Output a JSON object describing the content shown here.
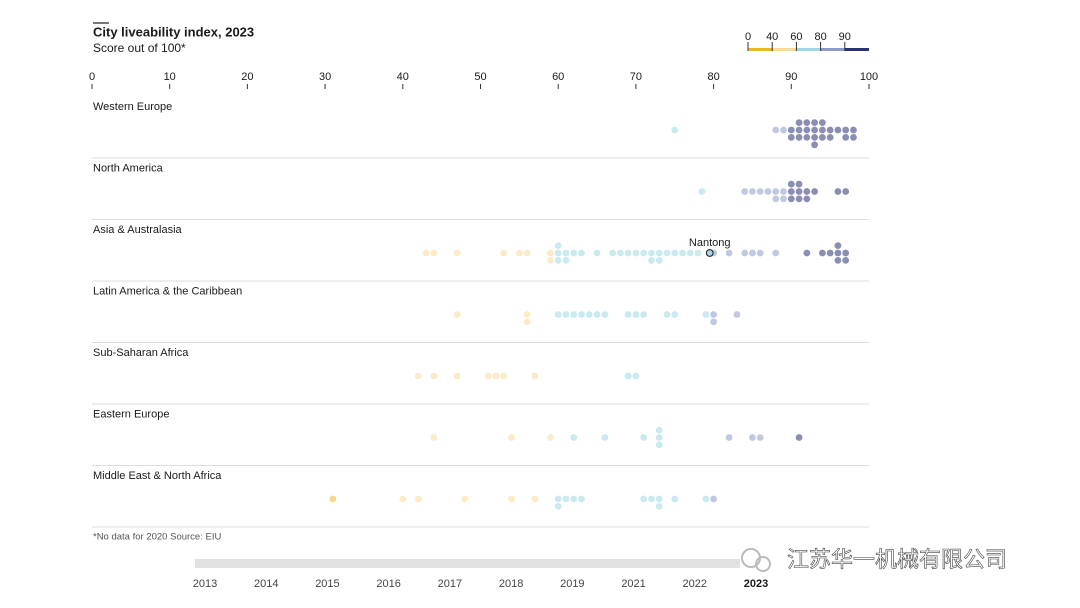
{
  "chart_data": {
    "type": "strip",
    "title": "City liveability index, 2023",
    "subtitle": "Score out of 100*",
    "xlim": [
      0,
      100
    ],
    "xticks": [
      0,
      10,
      20,
      30,
      40,
      50,
      60,
      70,
      80,
      90,
      100
    ],
    "color_scale": {
      "breaks": [
        0,
        40,
        60,
        80,
        90
      ],
      "colors": [
        "#f0b429",
        "#f7da98",
        "#9fd8e2",
        "#8d9cc6",
        "#2a3275"
      ]
    },
    "groups": [
      {
        "name": "Western Europe",
        "values": [
          75,
          88,
          89,
          90,
          90,
          91,
          91,
          91,
          92,
          92,
          92,
          93,
          93,
          93,
          93,
          94,
          94,
          94,
          95,
          95,
          96,
          97,
          97,
          98,
          98
        ]
      },
      {
        "name": "North America",
        "values": [
          78.5,
          84,
          85,
          86,
          87,
          88,
          88,
          89,
          89,
          90,
          90,
          90,
          91,
          91,
          91,
          92,
          92,
          93,
          96,
          97
        ]
      },
      {
        "name": "Asia & Australasia",
        "values": [
          43,
          44,
          47,
          53,
          55,
          56,
          59,
          59,
          60,
          60,
          60,
          61,
          61,
          62,
          63,
          65,
          67,
          68,
          69,
          70,
          71,
          72,
          72,
          73,
          73,
          74,
          75,
          76,
          77,
          78,
          80,
          82,
          84,
          85,
          86,
          88,
          92,
          94,
          95,
          96,
          96,
          96,
          97,
          97
        ]
      },
      {
        "name": "Latin America & the Caribbean",
        "values": [
          47,
          56,
          56,
          60,
          61,
          62,
          63,
          64,
          65,
          66,
          69,
          70,
          71,
          74,
          75,
          79,
          80,
          80,
          83
        ]
      },
      {
        "name": "Sub-Saharan Africa",
        "values": [
          42,
          44,
          47,
          51,
          52,
          53,
          57,
          69,
          70
        ]
      },
      {
        "name": "Eastern Europe",
        "values": [
          44,
          54,
          59,
          62,
          66,
          71,
          73,
          73,
          73,
          82,
          85,
          86,
          91
        ]
      },
      {
        "name": "Middle East & North Africa",
        "values": [
          31,
          40,
          42,
          48,
          54,
          57,
          60,
          60,
          61,
          62,
          63,
          71,
          72,
          73,
          73,
          75,
          79,
          80
        ]
      }
    ],
    "highlight": {
      "group": 2,
      "label": "Nantong",
      "value": 79.5
    },
    "footnote": "*No data for 2020   Source: EIU",
    "timeline": {
      "years": [
        "2013",
        "2014",
        "2015",
        "2016",
        "2017",
        "2018",
        "2019",
        "2021",
        "2022",
        "2023"
      ],
      "selected": 9
    },
    "watermark": "江苏华一机械有限公司"
  }
}
